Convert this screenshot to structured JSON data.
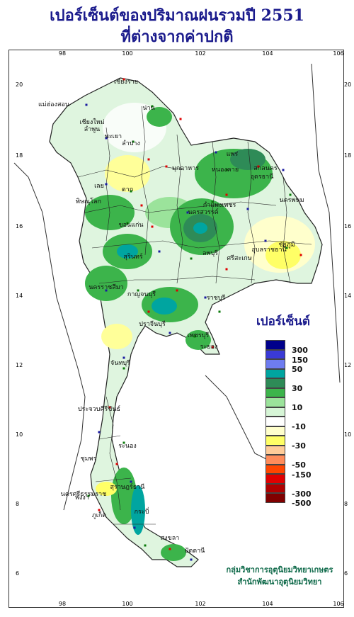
{
  "title_line1": "เปอร์เซ็นต์ของปริมาณฝนรวมปี 2551",
  "title_line2": "ที่ต่างจากค่าปกติ",
  "legend": {
    "title": "เปอร์เซ็นต์",
    "labels": [
      "300",
      "150",
      "50",
      "30",
      "10",
      "-10",
      "-30",
      "-50",
      "-150",
      "-300",
      "-500"
    ],
    "colors": [
      "#00008b",
      "#3a3ad6",
      "#6e7cf0",
      "#00a5a0",
      "#2e8b57",
      "#3cb44b",
      "#9be39b",
      "#d6f5d6",
      "#ffffff",
      "#ffffcc",
      "#ffff66",
      "#ffcc99",
      "#ff8c5a",
      "#ff4500",
      "#e00000",
      "#b00000",
      "#800000"
    ]
  },
  "axes": {
    "lon_ticks": [
      "98",
      "100",
      "102",
      "104",
      "106"
    ],
    "lat_ticks": [
      "20",
      "18",
      "16",
      "14",
      "12",
      "10",
      "8",
      "6"
    ]
  },
  "credit": {
    "line1": "กลุ่มวิชาการอุตุนิยมวิทยาเกษตร",
    "line2": "สำนักพัฒนาอุตุนิยมวิทยา"
  },
  "places": [
    "เชียงราย",
    "แม่ฮ่องสอน",
    "เชียงใหม่",
    "ลำพูน",
    "น่าน",
    "พะเยา",
    "ลำปาง",
    "แพร่",
    "หนองคาย",
    "อุดรธานี",
    "สกลนคร",
    "นครพนม",
    "มุกดาหาร",
    "เลย",
    "ตาก",
    "พิษณุโลก",
    "กำแพงเพชร",
    "ขอนแก่น",
    "นครสวรรค์",
    "ชัยภูมิ",
    "อุบลราชธานี",
    "ศรีสะเกษ",
    "สุรินทร์",
    "ลพบุรี",
    "นครราชสีมา",
    "กาญจนบุรี",
    "ราชบุรี",
    "ปราจีนบุรี",
    "เพชรบุรี",
    "ระยอง",
    "จันทบุรี",
    "ประจวบคีรีขันธ์",
    "ชุมพร",
    "ระนอง",
    "สุราษฎร์ธานี",
    "นครศรีธรรมราช",
    "พังงา",
    "ภูเก็ต",
    "กระบี่",
    "สงขลา",
    "ปัตตานี",
    "นราธิวาส"
  ]
}
